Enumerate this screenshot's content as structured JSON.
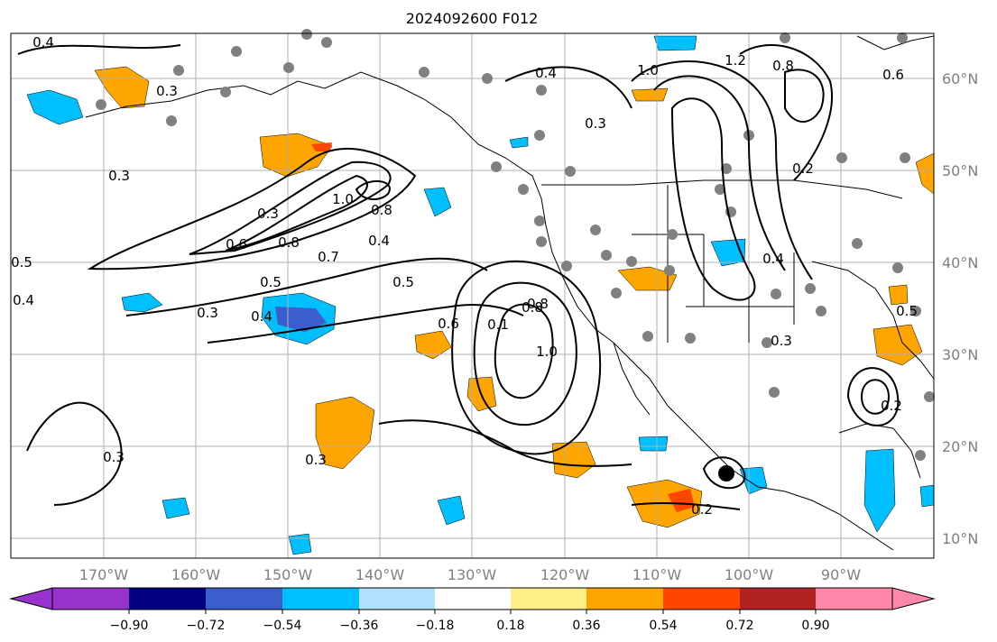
{
  "title": "2024092600 F012",
  "map": {
    "lon_labels": [
      "170°W",
      "160°W",
      "150°W",
      "140°W",
      "130°W",
      "120°W",
      "110°W",
      "100°W",
      "90°W"
    ],
    "lat_labels": [
      "60°N",
      "50°N",
      "40°N",
      "30°N",
      "20°N",
      "10°N"
    ],
    "grid": true
  },
  "colorbar": {
    "ticks": [
      "−0.90",
      "−0.72",
      "−0.54",
      "−0.36",
      "−0.18",
      "0.18",
      "0.36",
      "0.54",
      "0.72",
      "0.90"
    ],
    "colors": [
      "#9932cc",
      "#000080",
      "#3a5fcd",
      "#00bfff",
      "#b0e2ff",
      "#ffffff",
      "#ffee88",
      "#ffa500",
      "#ff4500",
      "#b22222",
      "#ff88aa"
    ]
  },
  "contour_labels": [
    "0.4",
    "0.3",
    "0.3",
    "0.3",
    "0.6",
    "0.8",
    "1.0",
    "0.8",
    "0.7",
    "0.4",
    "0.5",
    "0.5",
    "0.4",
    "0.3",
    "0.6",
    "0.1",
    "0.8",
    "1.0",
    "0.3",
    "0.3",
    "0.4",
    "1.0",
    "1.2",
    "0.8",
    "0.6",
    "0.8",
    "0.4",
    "0.3",
    "0.2",
    "0.3",
    "0.2",
    "0.5",
    "0.4",
    "0.2",
    "0.5"
  ]
}
